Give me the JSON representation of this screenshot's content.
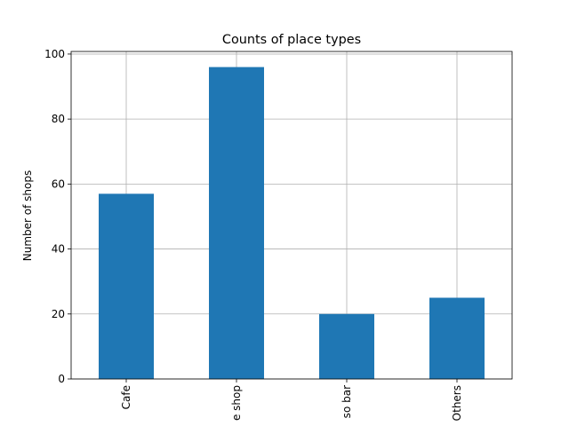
{
  "chart_data": {
    "type": "bar",
    "title": "Counts of place types",
    "xlabel": "",
    "ylabel": "Number of shops",
    "categories": [
      "Cafe",
      "Coffee shop",
      "Espresso bar",
      "Others"
    ],
    "visible_category_labels": [
      "Cafe",
      "e shop",
      "so bar",
      "Others"
    ],
    "values": [
      57,
      96,
      20,
      25
    ],
    "ylim": [
      0,
      100.8
    ],
    "yticks": [
      0,
      20,
      40,
      60,
      80,
      100
    ],
    "grid": true,
    "legend": "none",
    "bar_color": "#1f77b4"
  }
}
